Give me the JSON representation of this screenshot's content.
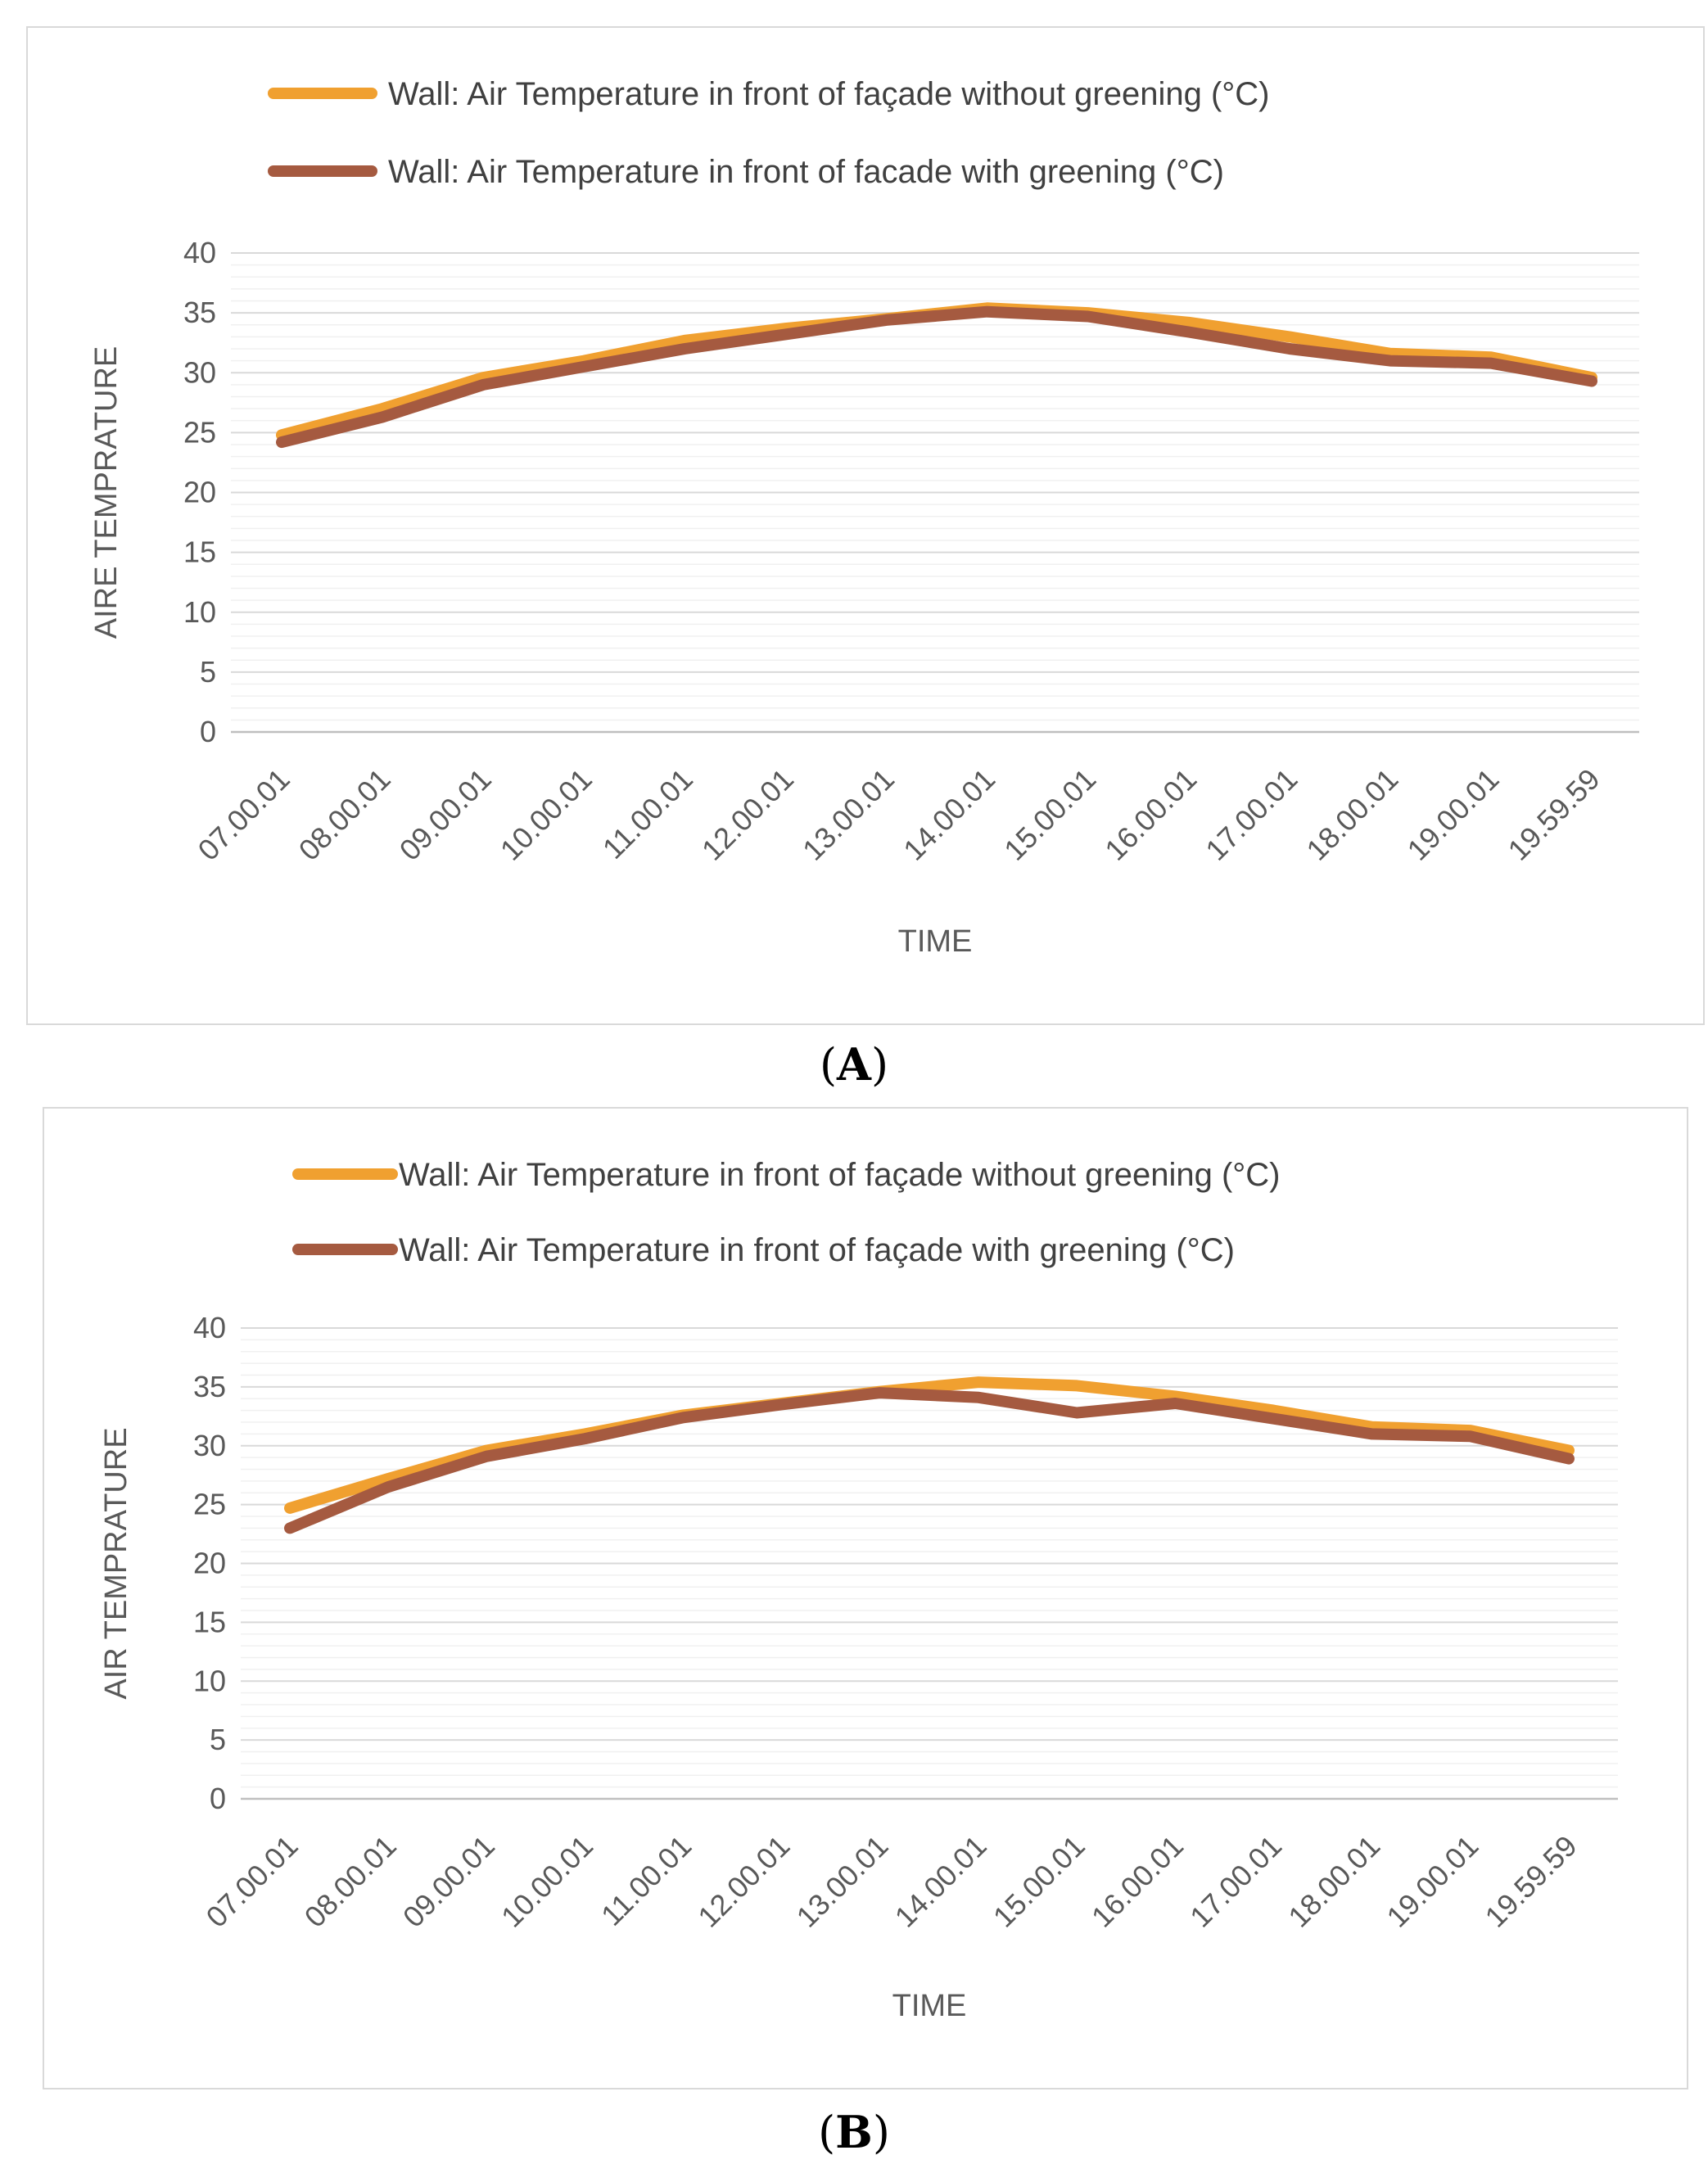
{
  "charts": [
    {
      "caption_letter": "A",
      "chart_data": {
        "type": "line",
        "title": "",
        "xlabel": "TIME",
        "ylabel": "AIRE TEMPRATURE",
        "ylim": [
          0,
          40
        ],
        "yticks": [
          0,
          5,
          10,
          15,
          20,
          25,
          30,
          35,
          40
        ],
        "categories": [
          "07.00.01",
          "08.00.01",
          "09.00.01",
          "10.00.01",
          "11.00.01",
          "12.00.01",
          "13.00.01",
          "14.00.01",
          "15.00.01",
          "16.00.01",
          "17.00.01",
          "18.00.01",
          "19.00.01",
          "19.59.59"
        ],
        "legend_position": "top",
        "series": [
          {
            "name": "Wall: Air Temperature in front of façade without greening  (°C)",
            "color": "#f0a030",
            "values": [
              24.8,
              27.0,
              29.6,
              31.0,
              32.7,
              33.7,
              34.5,
              35.4,
              35.0,
              34.2,
              33.0,
              31.6,
              31.3,
              29.6
            ]
          },
          {
            "name": "Wall: Air Temperature in front of facade with greening  (°C)",
            "color": "#a55a40",
            "values": [
              24.2,
              26.3,
              29.0,
              30.5,
              32.0,
              33.2,
              34.4,
              35.1,
              34.7,
              33.4,
              32.0,
              31.0,
              30.8,
              29.3
            ]
          }
        ]
      }
    },
    {
      "caption_letter": "B",
      "chart_data": {
        "type": "line",
        "title": "",
        "xlabel": "TIME",
        "ylabel": "AIR TEMPRATURE",
        "ylim": [
          0,
          40
        ],
        "yticks": [
          0,
          5,
          10,
          15,
          20,
          25,
          30,
          35,
          40
        ],
        "categories": [
          "07.00.01",
          "08.00.01",
          "09.00.01",
          "10.00.01",
          "11.00.01",
          "12.00.01",
          "13.00.01",
          "14.00.01",
          "15.00.01",
          "16.00.01",
          "17.00.01",
          "18.00.01",
          "19.00.01",
          "19.59.59"
        ],
        "legend_position": "top",
        "series": [
          {
            "name": "Wall: Air Temperature in front of façade without greening  (°C)",
            "color": "#f0a030",
            "values": [
              24.7,
              27.2,
              29.6,
              31.0,
              32.6,
              33.6,
              34.6,
              35.4,
              35.1,
              34.2,
              33.0,
              31.6,
              31.3,
              29.6
            ]
          },
          {
            "name": "Wall: Air Temperature in front of façade with greening  (°C)",
            "color": "#a55a40",
            "values": [
              23.0,
              26.5,
              29.1,
              30.6,
              32.4,
              33.5,
              34.5,
              34.1,
              32.8,
              33.6,
              32.3,
              31.0,
              30.8,
              28.9
            ]
          }
        ]
      }
    }
  ]
}
